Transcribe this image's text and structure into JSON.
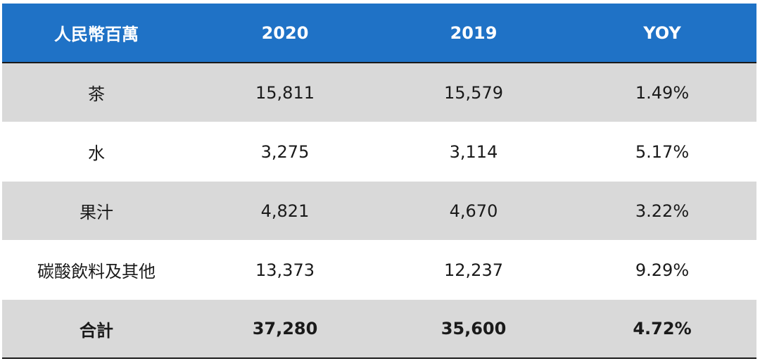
{
  "table": {
    "headers": [
      "人民幣百萬",
      "2020",
      "2019",
      "YOY"
    ],
    "rows": [
      [
        "茶",
        "15,811",
        "15,579",
        "1.49%"
      ],
      [
        "水",
        "3,275",
        "3,114",
        "5.17%"
      ],
      [
        "果汁",
        "4,821",
        "4,670",
        "3.22%"
      ],
      [
        "碳酸飲料及其他",
        "13,373",
        "12,237",
        "9.29%"
      ]
    ],
    "total": [
      "合計",
      "37,280",
      "35,600",
      "4.72%"
    ]
  },
  "colors": {
    "header_bg": "#1f72c6",
    "header_text": "#ffffff",
    "shaded_row": "#d9d9d9",
    "plain_row": "#ffffff",
    "text": "#1a1a1a"
  }
}
